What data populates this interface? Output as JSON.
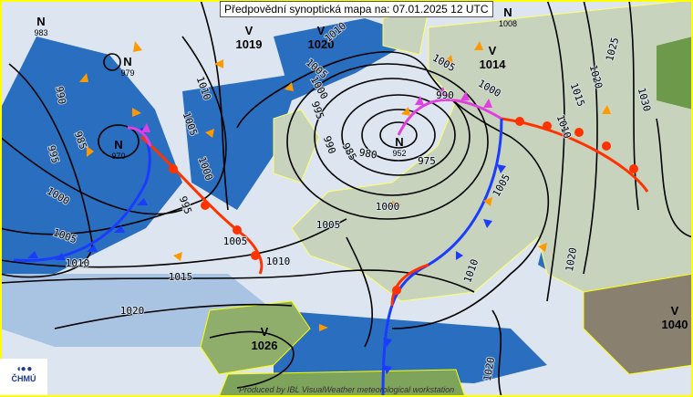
{
  "title": "Předpovědní synoptická mapa na: 07.01.2025 12 UTC",
  "logo": {
    "mark": "◖● ●",
    "name": "ČHMÚ"
  },
  "credit": "Produced by IBL VisualWeather meteorological workstation",
  "colors": {
    "border": "#ffff00",
    "cold_front": "#1a3cff",
    "warm_front": "#ff3300",
    "occluded_front": "#e040e0",
    "wind_arrow": "#ff9900",
    "sea": "#2a6ebf",
    "cloud": "#dde6f0"
  },
  "pressure_centers": [
    {
      "type": "N",
      "value": "983"
    },
    {
      "type": "N",
      "value": "979"
    },
    {
      "type": "N",
      "value": "970"
    },
    {
      "type": "V",
      "value": "1019"
    },
    {
      "type": "V",
      "value": "1020"
    },
    {
      "type": "V",
      "value": "1014"
    },
    {
      "type": "N",
      "value": "1008"
    },
    {
      "type": "N",
      "value": "952"
    },
    {
      "type": "V",
      "value": "1026"
    },
    {
      "type": "V",
      "value": "1040"
    }
  ],
  "isobar_labels": [
    "990",
    "985",
    "995",
    "1000",
    "1005",
    "1010",
    "1015",
    "1020",
    "1010",
    "1005",
    "1000",
    "995",
    "1005",
    "1000",
    "995",
    "990",
    "985",
    "980",
    "975",
    "1010",
    "990",
    "1000",
    "1005",
    "1010",
    "1015",
    "1020",
    "1025",
    "1030",
    "1000",
    "1005",
    "1005",
    "1010",
    "1020",
    "1010",
    "1005",
    "1020"
  ]
}
